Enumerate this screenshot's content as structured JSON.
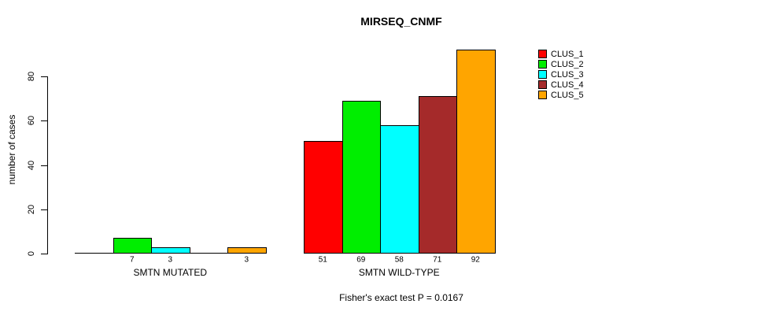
{
  "chart_data": {
    "type": "bar",
    "title": "MIRSEQ_CNMF",
    "ylabel": "number of cases",
    "xlabel": "",
    "ylim": [
      0,
      93
    ],
    "yticks": [
      0,
      20,
      40,
      60,
      80
    ],
    "grid": false,
    "legend_position": "right",
    "categories": [
      "SMTN MUTATED",
      "SMTN WILD-TYPE"
    ],
    "series": [
      {
        "name": "CLUS_1",
        "color": "#FF0000",
        "values": [
          0,
          51
        ]
      },
      {
        "name": "CLUS_2",
        "color": "#00EE00",
        "values": [
          7,
          69
        ]
      },
      {
        "name": "CLUS_3",
        "color": "#00FFFF",
        "values": [
          3,
          58
        ]
      },
      {
        "name": "CLUS_4",
        "color": "#A52A2A",
        "values": [
          0,
          71
        ]
      },
      {
        "name": "CLUS_5",
        "color": "#FFA500",
        "values": [
          3,
          92
        ]
      }
    ],
    "bar_value_labels": [
      [
        "",
        "7",
        "3",
        "",
        "3"
      ],
      [
        "51",
        "69",
        "58",
        "71",
        "92"
      ]
    ],
    "annotation": "Fisher's exact test P = 0.0167"
  }
}
